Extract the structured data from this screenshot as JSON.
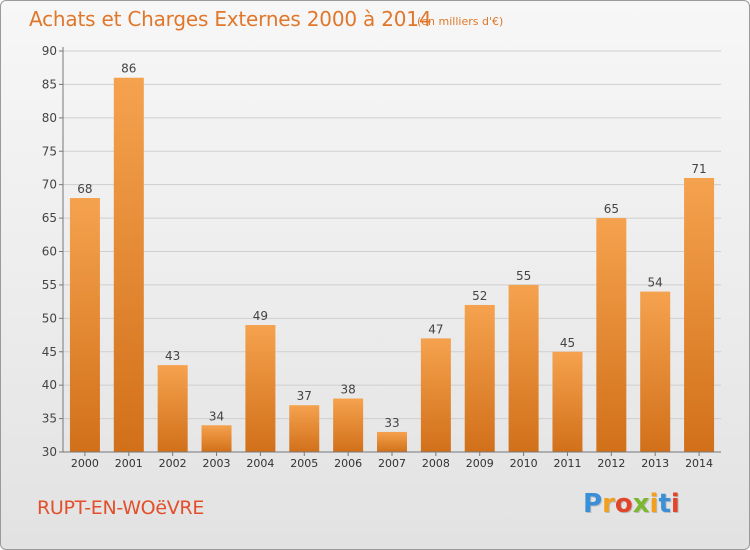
{
  "chart_data": {
    "type": "bar",
    "title": "Achats et Charges Externes 2000 à 2014",
    "subtitle": "(en milliers d'€)",
    "categories": [
      "2000",
      "2001",
      "2002",
      "2003",
      "2004",
      "2005",
      "2006",
      "2007",
      "2008",
      "2009",
      "2010",
      "2011",
      "2012",
      "2013",
      "2014"
    ],
    "values": [
      68,
      86,
      43,
      34,
      49,
      37,
      38,
      33,
      47,
      52,
      55,
      45,
      65,
      54,
      71
    ],
    "ylim": [
      30,
      90
    ],
    "yticks": [
      30,
      35,
      40,
      45,
      50,
      55,
      60,
      65,
      70,
      75,
      80,
      85,
      90
    ],
    "grid": true,
    "bar_color_top": "#f5a24e",
    "bar_color_bottom": "#d2701a"
  },
  "footer": {
    "commune": "RUPT-EN-WOëVRE",
    "logo_letters": [
      "P",
      "r",
      "o",
      "x",
      "i",
      "t",
      "i"
    ],
    "logo_colors": [
      "#3a8fd6",
      "#f0a01e",
      "#e2462a",
      "#7cb82f",
      "#f0a01e",
      "#3a8fd6",
      "#e2462a"
    ]
  }
}
